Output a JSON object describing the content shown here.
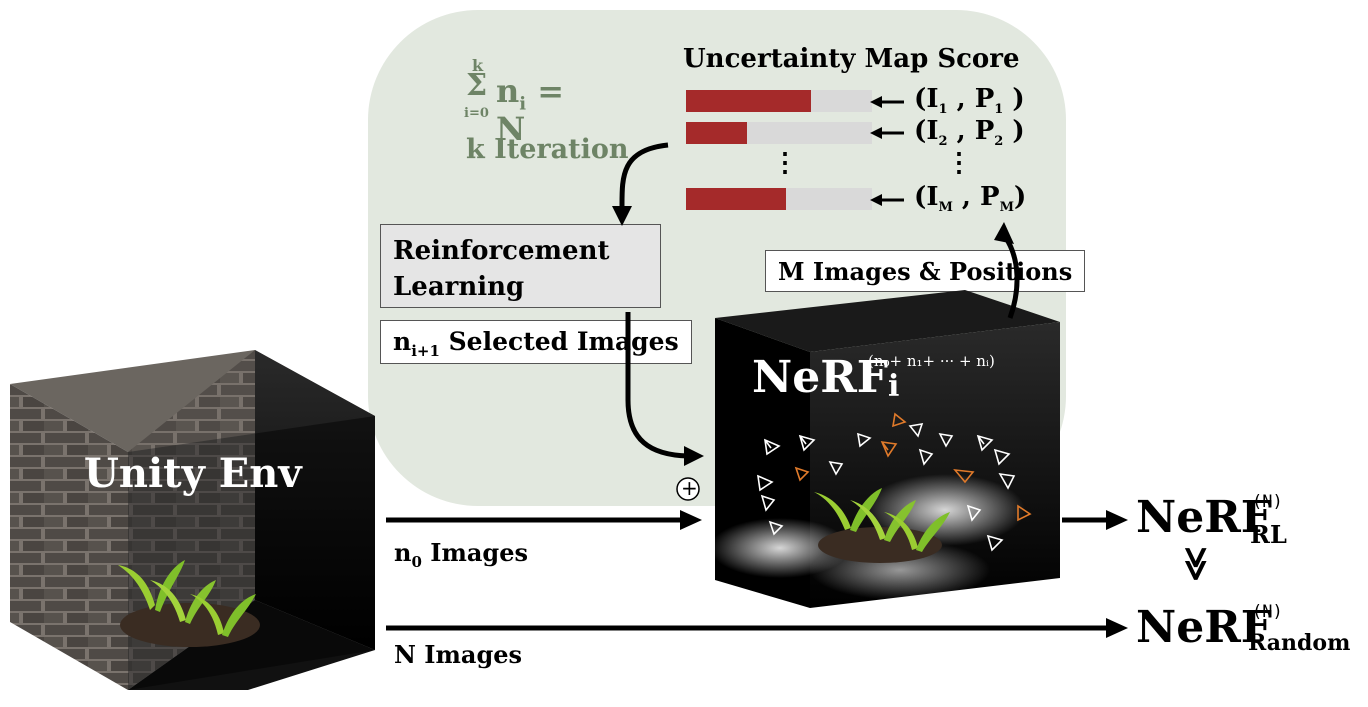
{
  "loop": {
    "sum_top": "k",
    "sum_symbol": "Σ",
    "sum_bottom": "i=0",
    "sum_expr": "n",
    "sum_expr_sub": "i",
    "sum_eq": "= N",
    "iteration_label": "k Iteration"
  },
  "uncertainty": {
    "title": "Uncertainty Map Score",
    "rows": [
      {
        "score": 0.67,
        "img": "I",
        "img_sub": "1",
        "pos": "P",
        "pos_sub": "1"
      },
      {
        "score": 0.33,
        "img": "I",
        "img_sub": "2",
        "pos": "P",
        "pos_sub": "2"
      },
      {
        "score": 0.54,
        "img": "I",
        "img_sub": "M",
        "pos": "P",
        "pos_sub": "M"
      }
    ],
    "ellipsis": "⋮"
  },
  "rl_box": {
    "line1": "Reinforcement",
    "line2": "Learning"
  },
  "selected": {
    "prefix": "n",
    "sub": "i+1",
    "text": " Selected Images"
  },
  "m_images": "M Images & Positions",
  "plus": "+",
  "unity": {
    "label": "Unity Env"
  },
  "nerf_i": {
    "name": "NeRF",
    "sub": "i",
    "sup": "(n₀+ n₁+ ··· + nᵢ)"
  },
  "arrows": {
    "n0_prefix": "n",
    "n0_sub": "0",
    "n0_text": " Images",
    "n_images": "N Images"
  },
  "results": {
    "rl": {
      "name": "NeRF",
      "sup": "(N)",
      "sub": "RL"
    },
    "compare": "≫",
    "random": {
      "name": "NeRF",
      "sup": "(N)",
      "sub": "Random"
    }
  },
  "colors": {
    "loop_bg": "#e2e8df",
    "bar_fill": "#a52a2a",
    "bar_track": "#d9d9d9",
    "sum_text": "#6e8466",
    "camera_orange": "#e07a2a"
  }
}
